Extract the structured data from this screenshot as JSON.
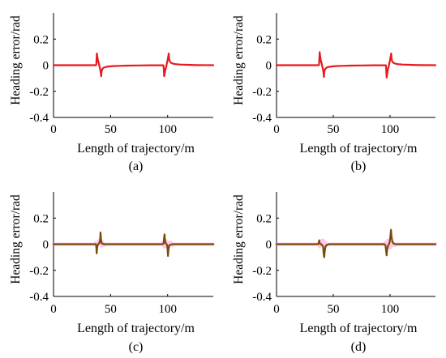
{
  "chart_data": [
    {
      "type": "line",
      "caption": "(a)",
      "xlabel": "Length of trajectory/m",
      "ylabel": "Heading error/rad",
      "xlim": [
        0,
        140
      ],
      "ylim": [
        -0.4,
        0.4
      ],
      "xticks": [
        "0",
        "50",
        "100"
      ],
      "yticks": [
        "0.2",
        "0",
        "-0.2",
        "-0.4"
      ],
      "grid": false,
      "series": [
        {
          "color": "#e8191c",
          "x": [
            0,
            37.3,
            37.5,
            38.0,
            38.5,
            39.0,
            39.5,
            39.8,
            40.0,
            40.5,
            41.0,
            41.5,
            41.8,
            42.0,
            42.5,
            43.5,
            45,
            48,
            52,
            58,
            65,
            75,
            85,
            95,
            96.3,
            96.5,
            97.0,
            97.5,
            98.0,
            98.5,
            98.8,
            99.0,
            99.5,
            100.0,
            100.5,
            101.0,
            101.3,
            101.5,
            102.0,
            103.0,
            104.5,
            107,
            111,
            117,
            125,
            140
          ],
          "y": [
            0,
            0,
            0.01,
            0.09,
            0.06,
            0.035,
            0.02,
            0.012,
            0.0,
            -0.015,
            -0.035,
            -0.065,
            -0.085,
            -0.055,
            -0.035,
            -0.022,
            -0.015,
            -0.01,
            -0.007,
            -0.005,
            -0.003,
            -0.002,
            -0.001,
            -0.001,
            -0.001,
            -0.012,
            -0.085,
            -0.06,
            -0.035,
            -0.02,
            -0.012,
            0.0,
            0.02,
            0.04,
            0.065,
            0.09,
            0.055,
            0.04,
            0.028,
            0.018,
            0.012,
            0.008,
            0.005,
            0.003,
            0.001,
            0
          ]
        }
      ]
    },
    {
      "type": "line",
      "caption": "(b)",
      "xlabel": "Length of trajectory/m",
      "ylabel": "Heading error/rad",
      "xlim": [
        0,
        140
      ],
      "ylim": [
        -0.4,
        0.4
      ],
      "xticks": [
        "0",
        "50",
        "100"
      ],
      "yticks": [
        "0.2",
        "0",
        "-0.2",
        "-0.4"
      ],
      "grid": false,
      "series": [
        {
          "color": "#e8191c",
          "x": [
            0,
            37.3,
            37.5,
            38.0,
            38.5,
            39.0,
            39.5,
            39.8,
            40.0,
            40.5,
            41.0,
            41.5,
            41.8,
            42.0,
            42.5,
            43.5,
            45,
            48,
            52,
            58,
            65,
            75,
            85,
            95,
            96.3,
            96.5,
            97.0,
            97.5,
            98.0,
            98.5,
            98.8,
            99.0,
            99.5,
            100.0,
            100.5,
            101.0,
            101.3,
            101.5,
            102.0,
            103.0,
            104.5,
            107,
            111,
            117,
            125,
            140
          ],
          "y": [
            0,
            0,
            0.01,
            0.1,
            0.065,
            0.035,
            0.02,
            0.012,
            0.0,
            -0.015,
            -0.035,
            -0.065,
            -0.09,
            -0.055,
            -0.035,
            -0.022,
            -0.015,
            -0.01,
            -0.007,
            -0.005,
            -0.003,
            -0.002,
            -0.001,
            -0.001,
            -0.001,
            -0.012,
            -0.095,
            -0.065,
            -0.035,
            -0.02,
            -0.012,
            0.0,
            0.02,
            0.04,
            0.065,
            0.09,
            0.055,
            0.04,
            0.028,
            0.018,
            0.012,
            0.008,
            0.005,
            0.003,
            0.001,
            0
          ]
        }
      ]
    },
    {
      "type": "line",
      "caption": "(c)",
      "xlabel": "Length of trajectory/m",
      "ylabel": "Heading error/rad",
      "xlim": [
        0,
        140
      ],
      "ylim": [
        -0.4,
        0.4
      ],
      "xticks": [
        "0",
        "50",
        "100"
      ],
      "yticks": [
        "0.2",
        "0",
        "-0.2",
        "-0.4"
      ],
      "grid": false,
      "series": [
        {
          "color": "#ff9bd8",
          "x": [
            0,
            36,
            37,
            38,
            39,
            40,
            41,
            42,
            43,
            44,
            46,
            94,
            96,
            97,
            98,
            99,
            100,
            101,
            102,
            103,
            104,
            106,
            140
          ],
          "y": [
            0,
            0,
            0.012,
            -0.02,
            0.015,
            0.03,
            0.03,
            -0.015,
            0.015,
            -0.01,
            0,
            0,
            0.015,
            -0.02,
            0.03,
            0.02,
            -0.03,
            -0.02,
            0.015,
            0.012,
            -0.01,
            0,
            0
          ]
        },
        {
          "color": "#7a4a0a",
          "x": [
            0,
            37.0,
            37.5,
            37.8,
            38.1,
            38.5,
            39.0,
            40.0,
            40.8,
            41.2,
            41.6,
            42.0,
            42.5,
            43.5,
            45,
            95.5,
            96.5,
            96.9,
            97.3,
            97.7,
            98.2,
            99.0,
            99.5,
            99.9,
            100.3,
            100.7,
            101.2,
            102.0,
            104,
            140
          ],
          "y": [
            0,
            0,
            -0.015,
            -0.07,
            -0.04,
            -0.01,
            0.0,
            0.005,
            0.03,
            0.09,
            0.04,
            0.015,
            0.005,
            0.002,
            0,
            0,
            0.005,
            0.05,
            0.075,
            0.03,
            0.01,
            0.0,
            -0.005,
            -0.03,
            -0.09,
            -0.045,
            -0.015,
            -0.005,
            0,
            0
          ]
        }
      ]
    },
    {
      "type": "line",
      "caption": "(d)",
      "xlabel": "Length of trajectory/m",
      "ylabel": "Heading error/rad",
      "xlim": [
        0,
        140
      ],
      "ylim": [
        -0.4,
        0.4
      ],
      "xticks": [
        "0",
        "50",
        "100"
      ],
      "yticks": [
        "0.2",
        "0",
        "-0.2",
        "-0.4"
      ],
      "grid": false,
      "series": [
        {
          "color": "#ff9bd8",
          "x": [
            0,
            36,
            37,
            38,
            39,
            40,
            41,
            42,
            43,
            44,
            46,
            94,
            96,
            97,
            98,
            99,
            100,
            101,
            102,
            103,
            104,
            106,
            140
          ],
          "y": [
            0,
            0,
            0.012,
            -0.02,
            0.015,
            0.03,
            0.03,
            -0.015,
            0.015,
            -0.01,
            0,
            0,
            0.015,
            -0.02,
            0.03,
            0.02,
            -0.03,
            -0.02,
            0.015,
            0.012,
            -0.01,
            0,
            0
          ]
        },
        {
          "color": "#7a4a0a",
          "x": [
            0,
            36.5,
            37.2,
            37.6,
            38.0,
            38.5,
            39.2,
            40.0,
            41.0,
            41.5,
            42.0,
            42.5,
            43.2,
            44.5,
            46,
            95.0,
            96.0,
            96.5,
            97.0,
            97.5,
            98.2,
            99.0,
            99.8,
            100.3,
            100.8,
            101.3,
            102.0,
            103.0,
            105,
            140
          ],
          "y": [
            0,
            0,
            0.008,
            0.03,
            0.01,
            0.003,
            0.0,
            -0.005,
            -0.02,
            -0.07,
            -0.1,
            -0.05,
            -0.015,
            -0.004,
            0,
            0,
            -0.01,
            -0.05,
            -0.085,
            -0.04,
            -0.012,
            0.0,
            0.02,
            0.06,
            0.11,
            0.06,
            0.02,
            0.005,
            0,
            0
          ]
        }
      ]
    }
  ]
}
